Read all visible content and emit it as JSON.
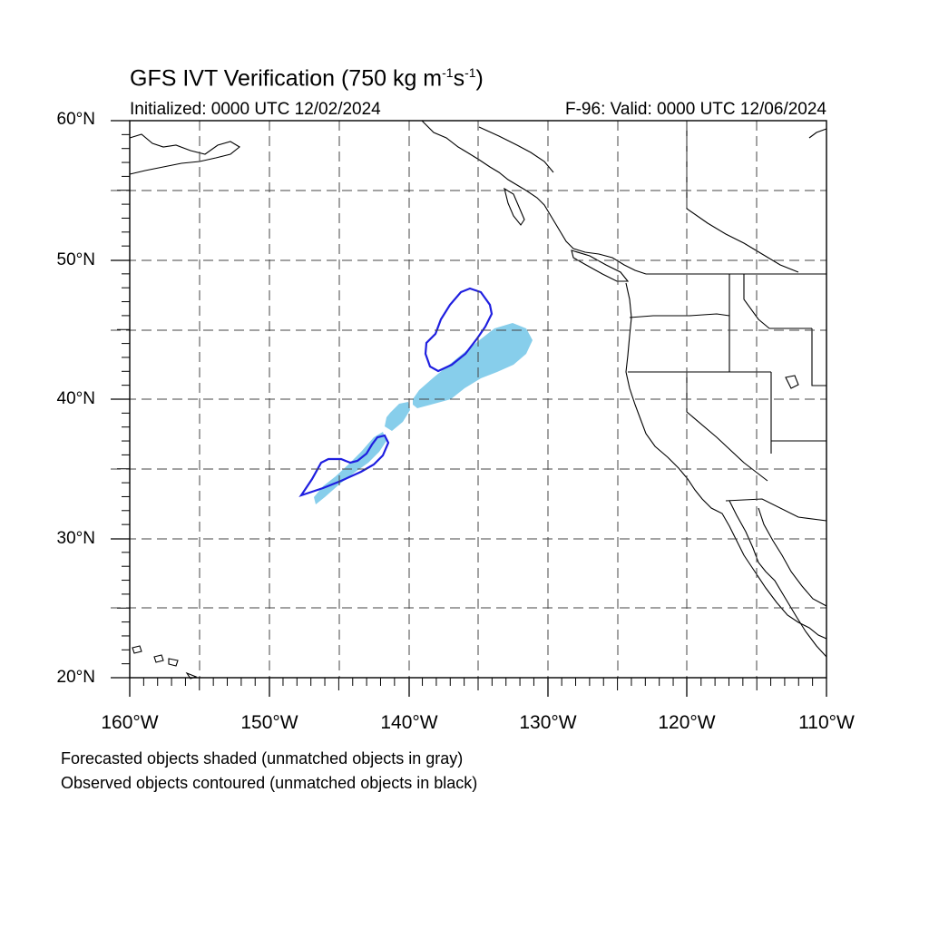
{
  "title": {
    "main": "GFS IVT Verification (750 kg m",
    "exp1": "-1",
    "mid": "s",
    "exp2": "-1",
    "end": ")"
  },
  "init_label": "Initialized: 0000 UTC 12/02/2024",
  "valid_label": "F-96: Valid: 0000 UTC 12/06/2024",
  "lat_labels": [
    "60°N",
    "50°N",
    "40°N",
    "30°N",
    "20°N"
  ],
  "lon_labels": [
    "160°W",
    "150°W",
    "140°W",
    "130°W",
    "120°W",
    "110°W"
  ],
  "footnotes": [
    "Forecasted objects shaded (unmatched objects in gray)",
    "Observed objects contoured (unmatched objects in black)"
  ],
  "colors": {
    "forecast_fill": "#87ceeb",
    "observed_contour": "#1f1fe0",
    "grid": "#333333"
  }
}
